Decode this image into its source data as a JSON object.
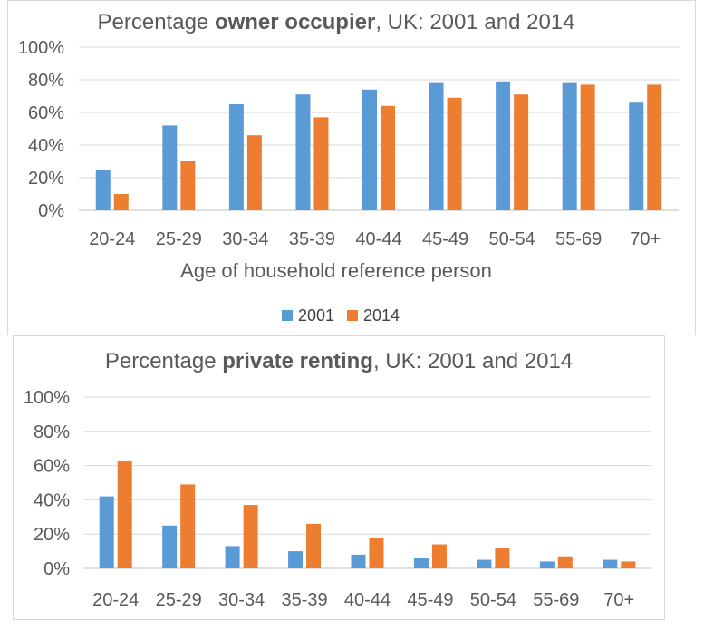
{
  "colors": {
    "series_2001": "#5b9bd5",
    "series_2014": "#ed7d31"
  },
  "chart_data": [
    {
      "type": "bar",
      "title_parts": [
        {
          "text": "Percentage ",
          "bold": false
        },
        {
          "text": "owner occupier",
          "bold": true
        },
        {
          "text": ", UK: 2001 and 2014",
          "bold": false
        }
      ],
      "categories": [
        "20-24",
        "25-29",
        "30-34",
        "35-39",
        "40-44",
        "45-49",
        "50-54",
        "55-69",
        "70+"
      ],
      "series": [
        {
          "name": "2001",
          "values": [
            25,
            52,
            65,
            71,
            74,
            78,
            79,
            78,
            66
          ]
        },
        {
          "name": "2014",
          "values": [
            10,
            30,
            46,
            57,
            64,
            69,
            71,
            77,
            77
          ]
        }
      ],
      "xlabel": "Age of household reference person",
      "ylabel": "",
      "ylim": [
        0,
        100
      ],
      "yticks": [
        "0%",
        "20%",
        "40%",
        "60%",
        "80%",
        "100%"
      ],
      "grid": true,
      "legend": "bottom"
    },
    {
      "type": "bar",
      "title_parts": [
        {
          "text": "Percentage ",
          "bold": false
        },
        {
          "text": "private renting",
          "bold": true
        },
        {
          "text": ", UK: 2001 and 2014",
          "bold": false
        }
      ],
      "categories": [
        "20-24",
        "25-29",
        "30-34",
        "35-39",
        "40-44",
        "45-49",
        "50-54",
        "55-69",
        "70+"
      ],
      "series": [
        {
          "name": "2001",
          "values": [
            42,
            25,
            13,
            10,
            8,
            6,
            5,
            4,
            5
          ]
        },
        {
          "name": "2014",
          "values": [
            63,
            49,
            37,
            26,
            18,
            14,
            12,
            7,
            4
          ]
        }
      ],
      "xlabel": "",
      "ylabel": "",
      "ylim": [
        0,
        100
      ],
      "yticks": [
        "0%",
        "20%",
        "40%",
        "60%",
        "80%",
        "100%"
      ],
      "grid": true,
      "legend": "none"
    }
  ]
}
